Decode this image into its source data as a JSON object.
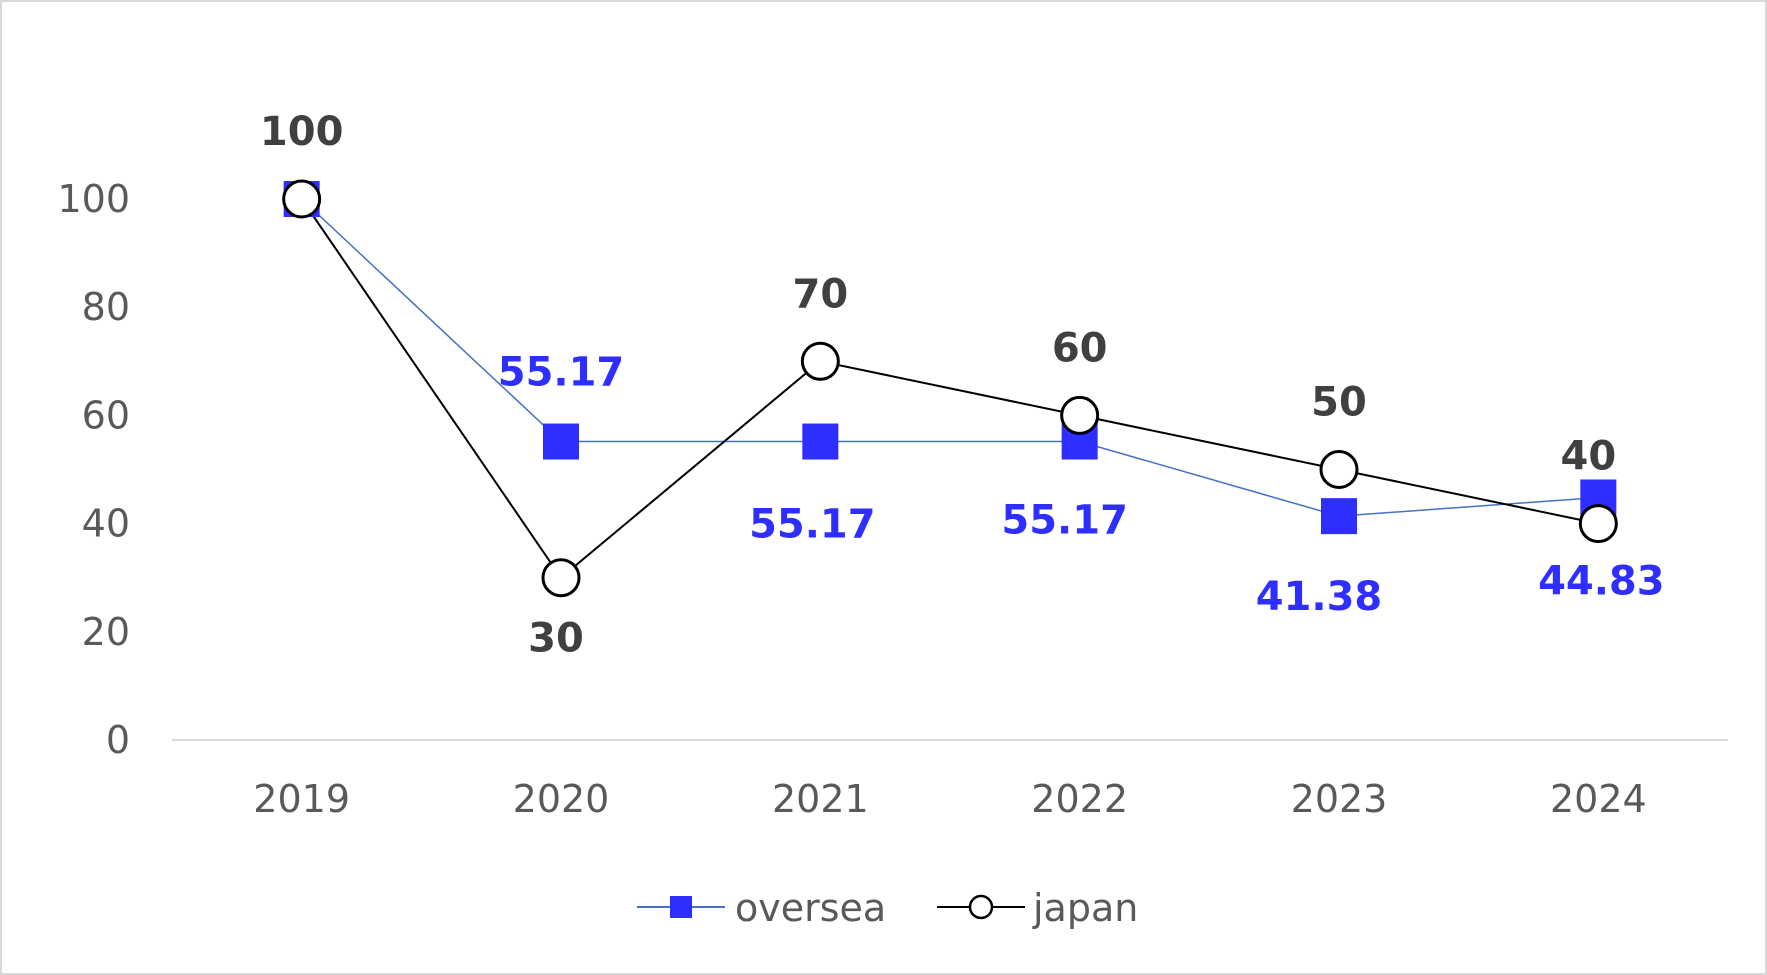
{
  "chart_data": {
    "type": "line",
    "title": "",
    "xlabel": "",
    "ylabel": "",
    "categories": [
      "2019",
      "2020",
      "2021",
      "2022",
      "2023",
      "2024"
    ],
    "ylim": [
      0,
      100
    ],
    "yticks": [
      "0",
      "20",
      "40",
      "60",
      "80",
      "100"
    ],
    "grid": false,
    "legend_position": "bottom",
    "series": [
      {
        "name": "oversea",
        "values": [
          100,
          55.17,
          55.17,
          55.17,
          41.38,
          44.83
        ],
        "labels": [
          "",
          "55.17",
          "55.17",
          "55.17",
          "41.38",
          "44.83"
        ],
        "marker": "square",
        "line_color": "#4472c4",
        "marker_color": "#2e2eff",
        "label_color": "#2e2eff"
      },
      {
        "name": "japan",
        "values": [
          100,
          30,
          70,
          60,
          50,
          40
        ],
        "labels": [
          "100",
          "30",
          "70",
          "60",
          "50",
          "40"
        ],
        "marker": "circle",
        "line_color": "#000000",
        "marker_color": "#ffffff",
        "label_color": "#404040"
      }
    ]
  }
}
